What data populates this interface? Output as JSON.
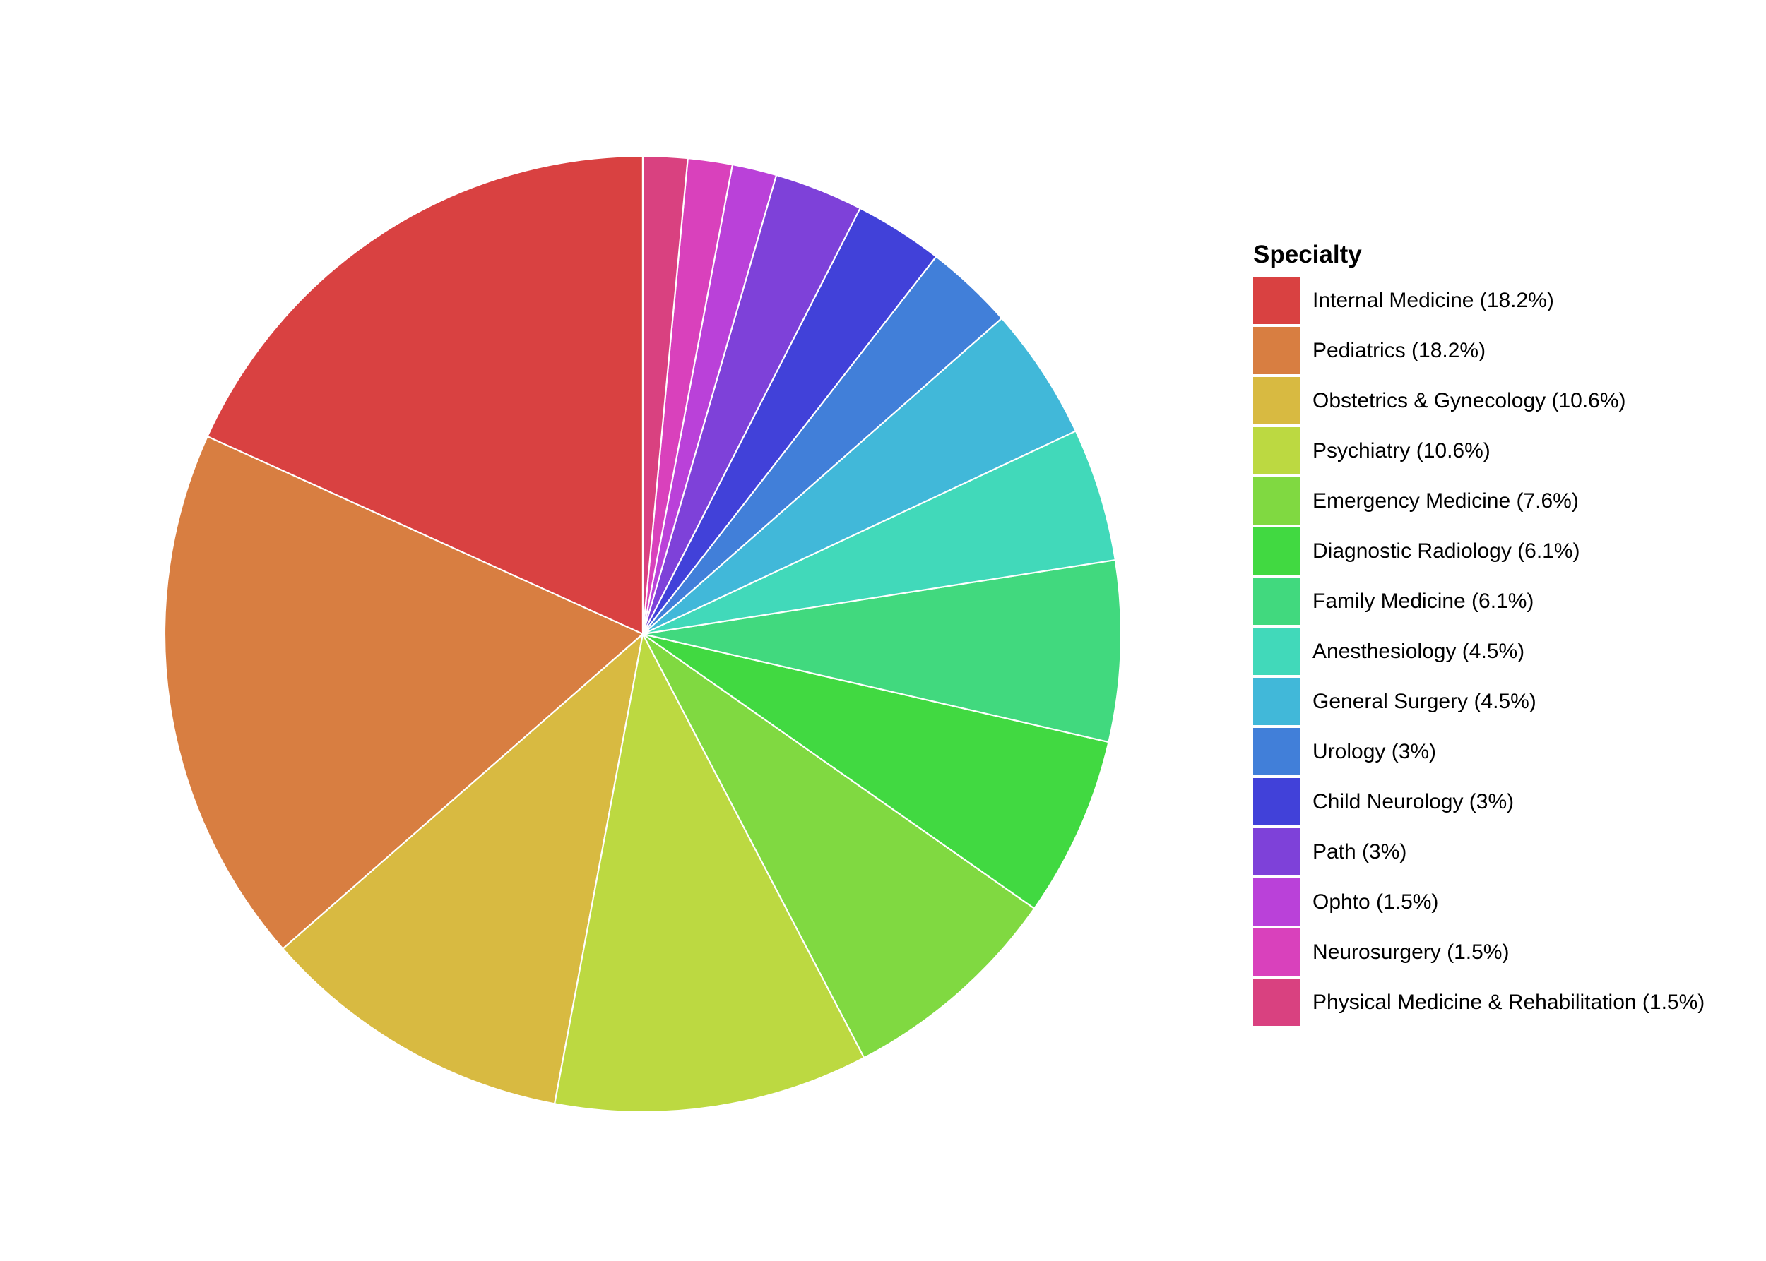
{
  "chart_data": {
    "type": "pie",
    "legend_title": "Specialty",
    "legend_position": "right",
    "slice_border": "#ffffff",
    "start_angle": "12 o'clock",
    "direction": "counter-clockwise",
    "slices": [
      {
        "label": "Internal Medicine (18.2%)",
        "value": 18.2,
        "color": "#D94141"
      },
      {
        "label": "Pediatrics (18.2%)",
        "value": 18.2,
        "color": "#D87E41"
      },
      {
        "label": "Obstetrics & Gynecology (10.6%)",
        "value": 10.6,
        "color": "#D8BA41"
      },
      {
        "label": "Psychiatry (10.6%)",
        "value": 10.6,
        "color": "#BCD941"
      },
      {
        "label": "Emergency Medicine (7.6%)",
        "value": 7.6,
        "color": "#80D941"
      },
      {
        "label": "Diagnostic Radiology (6.1%)",
        "value": 6.1,
        "color": "#41D941"
      },
      {
        "label": "Family Medicine (6.1%)",
        "value": 6.1,
        "color": "#41D97E"
      },
      {
        "label": "Anesthesiology (4.5%)",
        "value": 4.5,
        "color": "#41D9BA"
      },
      {
        "label": "General Surgery (4.5%)",
        "value": 4.5,
        "color": "#41B8D9"
      },
      {
        "label": "Urology (3%)",
        "value": 3.0,
        "color": "#417FD9"
      },
      {
        "label": "Child Neurology (3%)",
        "value": 3.0,
        "color": "#4141D9"
      },
      {
        "label": "Path (3%)",
        "value": 3.0,
        "color": "#7E41D9"
      },
      {
        "label": "Ophto (1.5%)",
        "value": 1.5,
        "color": "#BA41D9"
      },
      {
        "label": "Neurosurgery (1.5%)",
        "value": 1.5,
        "color": "#D941BC"
      },
      {
        "label": "Physical Medicine & Rehabilitation (1.5%)",
        "value": 1.5,
        "color": "#D94180"
      }
    ]
  }
}
